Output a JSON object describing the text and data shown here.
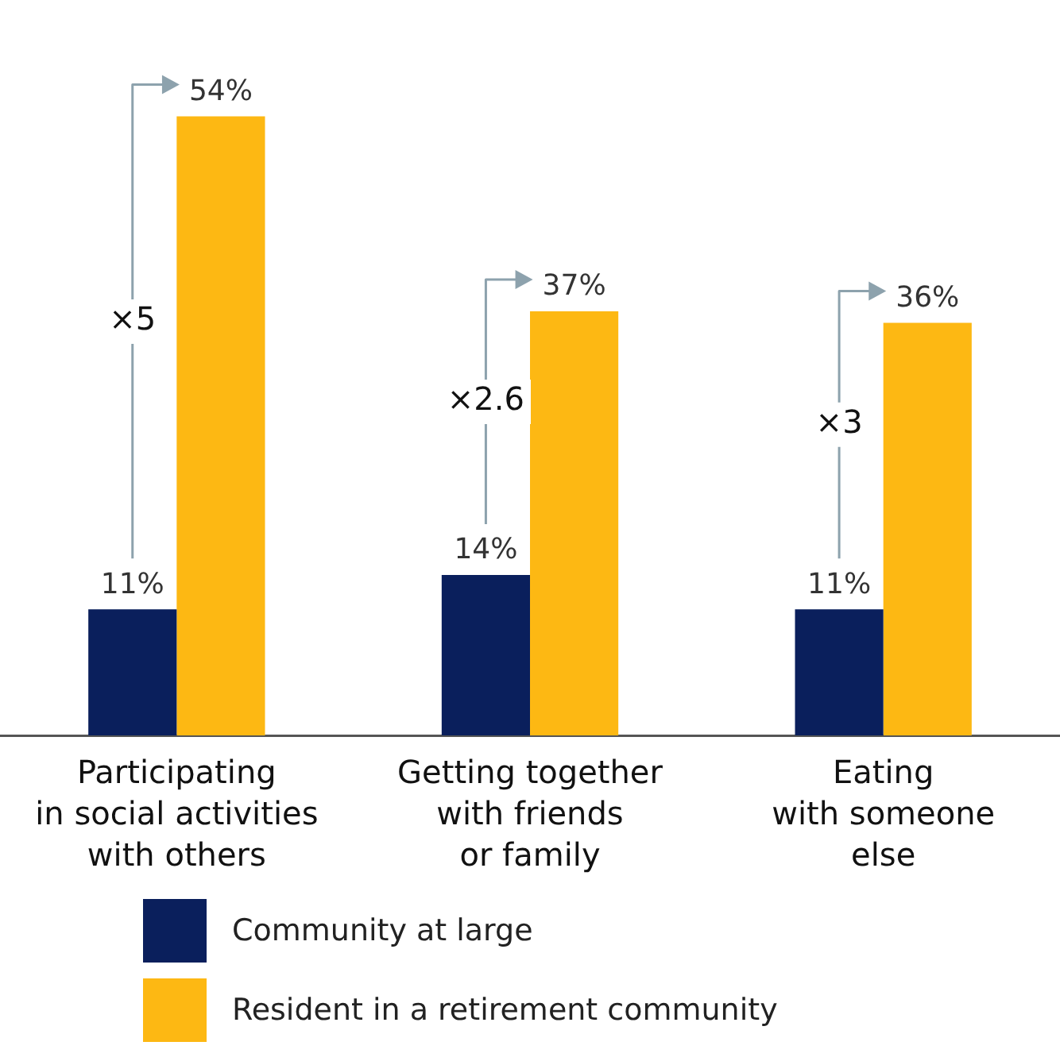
{
  "chart_data": {
    "type": "bar",
    "categories": [
      "Participating\nin social activities\nwith others",
      "Getting together\nwith friends\nor family",
      "Eating\nwith someone\nelse"
    ],
    "series": [
      {
        "name": "Community at large",
        "color": "#0a1f5c",
        "values": [
          11,
          14,
          11
        ],
        "value_labels": [
          "11%",
          "14%",
          "11%"
        ]
      },
      {
        "name": "Resident in a retirement community",
        "color": "#fdb813",
        "values": [
          54,
          37,
          36
        ],
        "value_labels": [
          "54%",
          "37%",
          "36%"
        ]
      }
    ],
    "annotations": [
      "×5",
      "×2.6",
      "×3"
    ],
    "legend": "bottom",
    "grid": false,
    "tick_labels": "x"
  }
}
